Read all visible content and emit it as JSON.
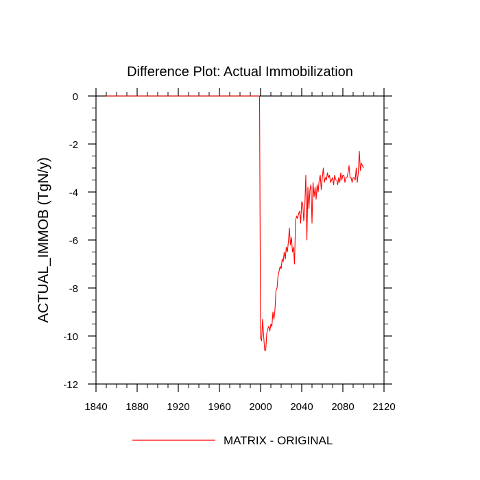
{
  "chart_data": {
    "type": "line",
    "title": "Difference Plot: Actual Immobilization",
    "xlabel": "",
    "ylabel": "ACTUAL_IMMOB  (TgN/y)",
    "xlim": [
      1840,
      2120
    ],
    "ylim": [
      -12,
      0
    ],
    "x_ticks": [
      1840,
      1880,
      1920,
      1960,
      2000,
      2040,
      2080,
      2120
    ],
    "y_ticks": [
      0,
      -2,
      -4,
      -6,
      -8,
      -10,
      -12
    ],
    "grid": false,
    "legend_position": "bottom-center",
    "series": [
      {
        "name": "MATRIX - ORIGINAL",
        "color": "#ff0000",
        "x": [
          1850,
          1860,
          1870,
          1880,
          1890,
          1900,
          1910,
          1920,
          1930,
          1940,
          1950,
          1960,
          1970,
          1980,
          1990,
          1999,
          2000,
          2001,
          2002,
          2003,
          2004,
          2005,
          2006,
          2007,
          2008,
          2009,
          2010,
          2011,
          2012,
          2013,
          2014,
          2015,
          2016,
          2017,
          2018,
          2019,
          2020,
          2021,
          2022,
          2023,
          2024,
          2025,
          2026,
          2027,
          2028,
          2029,
          2030,
          2031,
          2032,
          2033,
          2034,
          2035,
          2036,
          2037,
          2038,
          2039,
          2040,
          2041,
          2042,
          2043,
          2044,
          2045,
          2046,
          2047,
          2048,
          2049,
          2050,
          2051,
          2052,
          2053,
          2054,
          2055,
          2056,
          2057,
          2058,
          2059,
          2060,
          2061,
          2062,
          2063,
          2064,
          2065,
          2066,
          2067,
          2068,
          2069,
          2070,
          2071,
          2072,
          2073,
          2074,
          2075,
          2076,
          2077,
          2078,
          2079,
          2080,
          2081,
          2082,
          2083,
          2084,
          2085,
          2086,
          2087,
          2088,
          2089,
          2090,
          2091,
          2092,
          2093,
          2094,
          2095,
          2096,
          2097,
          2098,
          2099,
          2100
        ],
        "values": [
          0,
          0,
          0,
          0,
          0,
          0,
          0,
          0,
          0,
          0,
          0,
          0,
          0,
          0,
          0,
          0,
          -10.1,
          -10.2,
          -9.3,
          -10.0,
          -10.6,
          -10.6,
          -9.9,
          -9.7,
          -9.6,
          -9.8,
          -9.5,
          -9.6,
          -9.0,
          -9.3,
          -8.9,
          -8.1,
          -8.0,
          -7.5,
          -7.3,
          -7.1,
          -7.2,
          -6.8,
          -6.9,
          -6.5,
          -6.8,
          -6.3,
          -6.5,
          -6.1,
          -5.5,
          -6.2,
          -5.9,
          -6.5,
          -6.3,
          -7.0,
          -5.2,
          -5.0,
          -5.1,
          -4.9,
          -4.8,
          -5.3,
          -4.4,
          -4.5,
          -5.2,
          -4.6,
          -3.3,
          -6.0,
          -3.8,
          -4.7,
          -3.9,
          -3.7,
          -5.3,
          -3.6,
          -4.2,
          -3.8,
          -4.3,
          -3.7,
          -4.0,
          -3.5,
          -3.3,
          -3.9,
          -3.4,
          -3.0,
          -3.6,
          -3.4,
          -3.5,
          -3.2,
          -3.4,
          -3.3,
          -3.6,
          -3.5,
          -3.4,
          -3.7,
          -3.3,
          -3.5,
          -3.5,
          -3.7,
          -3.4,
          -3.6,
          -3.2,
          -3.5,
          -3.3,
          -3.3,
          -3.6,
          -3.4,
          -3.4,
          -3.2,
          -2.9,
          -3.4,
          -3.4,
          -3.6,
          -3.4,
          -3.4,
          -3.5,
          -3.0,
          -3.6,
          -3.2,
          -2.3,
          -3.1,
          -2.8,
          -2.9,
          -3.0
        ]
      }
    ]
  }
}
